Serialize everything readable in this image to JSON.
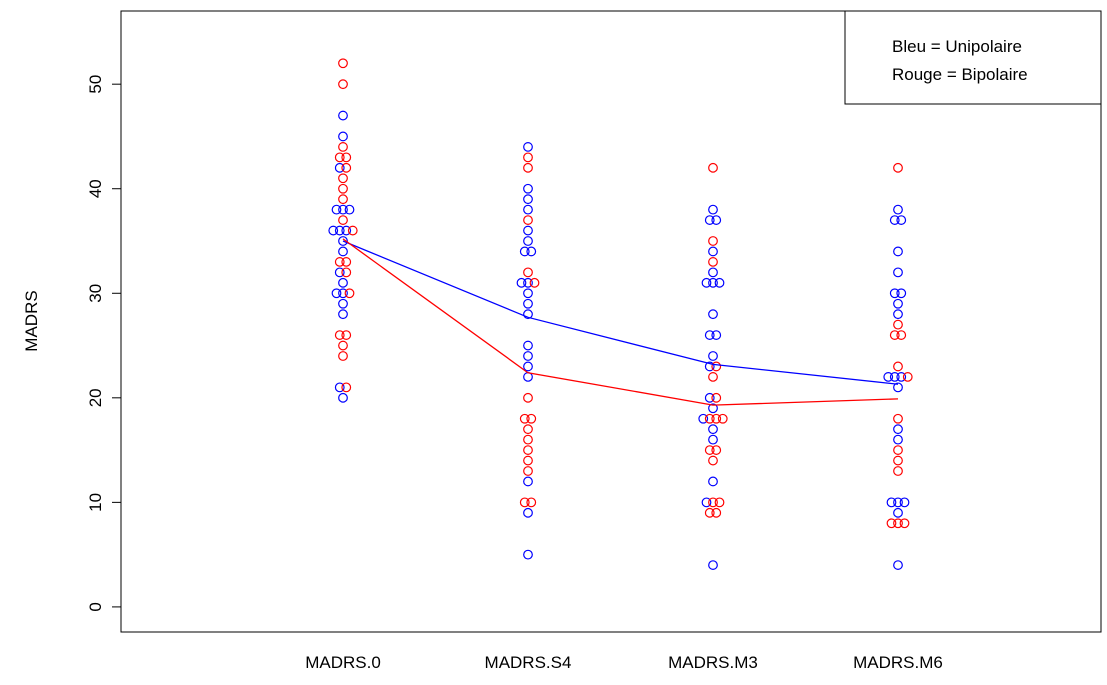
{
  "chart_data": {
    "type": "scatter",
    "categories": [
      "MADRS.0",
      "MADRS.S4",
      "MADRS.M3",
      "MADRS.M6"
    ],
    "ylabel": "MADRS",
    "ylim": [
      -2.4,
      57
    ],
    "yticks": [
      0,
      10,
      20,
      30,
      40,
      50
    ],
    "grid": false,
    "legend": {
      "position": "top-right",
      "entries": [
        "Bleu = Unipolaire",
        "Rouge = Bipolaire"
      ]
    },
    "series": [
      {
        "color": "#0000ff",
        "points": [
          {
            "x": "MADRS.0",
            "y": 47
          },
          {
            "x": "MADRS.0",
            "y": 45
          },
          {
            "x": "MADRS.0",
            "y": 42
          },
          {
            "x": "MADRS.0",
            "y": 38
          },
          {
            "x": "MADRS.0",
            "y": 38
          },
          {
            "x": "MADRS.0",
            "y": 38
          },
          {
            "x": "MADRS.0",
            "y": 36
          },
          {
            "x": "MADRS.0",
            "y": 36
          },
          {
            "x": "MADRS.0",
            "y": 36
          },
          {
            "x": "MADRS.0",
            "y": 35
          },
          {
            "x": "MADRS.0",
            "y": 34
          },
          {
            "x": "MADRS.0",
            "y": 32
          },
          {
            "x": "MADRS.0",
            "y": 31
          },
          {
            "x": "MADRS.0",
            "y": 30
          },
          {
            "x": "MADRS.0",
            "y": 30
          },
          {
            "x": "MADRS.0",
            "y": 29
          },
          {
            "x": "MADRS.0",
            "y": 28
          },
          {
            "x": "MADRS.0",
            "y": 21
          },
          {
            "x": "MADRS.0",
            "y": 20
          },
          {
            "x": "MADRS.S4",
            "y": 44
          },
          {
            "x": "MADRS.S4",
            "y": 40
          },
          {
            "x": "MADRS.S4",
            "y": 39
          },
          {
            "x": "MADRS.S4",
            "y": 38
          },
          {
            "x": "MADRS.S4",
            "y": 36
          },
          {
            "x": "MADRS.S4",
            "y": 35
          },
          {
            "x": "MADRS.S4",
            "y": 34
          },
          {
            "x": "MADRS.S4",
            "y": 34
          },
          {
            "x": "MADRS.S4",
            "y": 31
          },
          {
            "x": "MADRS.S4",
            "y": 31
          },
          {
            "x": "MADRS.S4",
            "y": 30
          },
          {
            "x": "MADRS.S4",
            "y": 29
          },
          {
            "x": "MADRS.S4",
            "y": 28
          },
          {
            "x": "MADRS.S4",
            "y": 25
          },
          {
            "x": "MADRS.S4",
            "y": 24
          },
          {
            "x": "MADRS.S4",
            "y": 23
          },
          {
            "x": "MADRS.S4",
            "y": 22
          },
          {
            "x": "MADRS.S4",
            "y": 12
          },
          {
            "x": "MADRS.S4",
            "y": 9
          },
          {
            "x": "MADRS.S4",
            "y": 5
          },
          {
            "x": "MADRS.M3",
            "y": 38
          },
          {
            "x": "MADRS.M3",
            "y": 37
          },
          {
            "x": "MADRS.M3",
            "y": 37
          },
          {
            "x": "MADRS.M3",
            "y": 34
          },
          {
            "x": "MADRS.M3",
            "y": 32
          },
          {
            "x": "MADRS.M3",
            "y": 31
          },
          {
            "x": "MADRS.M3",
            "y": 31
          },
          {
            "x": "MADRS.M3",
            "y": 31
          },
          {
            "x": "MADRS.M3",
            "y": 28
          },
          {
            "x": "MADRS.M3",
            "y": 26
          },
          {
            "x": "MADRS.M3",
            "y": 26
          },
          {
            "x": "MADRS.M3",
            "y": 24
          },
          {
            "x": "MADRS.M3",
            "y": 23
          },
          {
            "x": "MADRS.M3",
            "y": 20
          },
          {
            "x": "MADRS.M3",
            "y": 19
          },
          {
            "x": "MADRS.M3",
            "y": 18
          },
          {
            "x": "MADRS.M3",
            "y": 17
          },
          {
            "x": "MADRS.M3",
            "y": 16
          },
          {
            "x": "MADRS.M3",
            "y": 12
          },
          {
            "x": "MADRS.M3",
            "y": 10
          },
          {
            "x": "MADRS.M3",
            "y": 4
          },
          {
            "x": "MADRS.M6",
            "y": 38
          },
          {
            "x": "MADRS.M6",
            "y": 37
          },
          {
            "x": "MADRS.M6",
            "y": 37
          },
          {
            "x": "MADRS.M6",
            "y": 34
          },
          {
            "x": "MADRS.M6",
            "y": 32
          },
          {
            "x": "MADRS.M6",
            "y": 30
          },
          {
            "x": "MADRS.M6",
            "y": 30
          },
          {
            "x": "MADRS.M6",
            "y": 29
          },
          {
            "x": "MADRS.M6",
            "y": 28
          },
          {
            "x": "MADRS.M6",
            "y": 22
          },
          {
            "x": "MADRS.M6",
            "y": 22
          },
          {
            "x": "MADRS.M6",
            "y": 22
          },
          {
            "x": "MADRS.M6",
            "y": 21
          },
          {
            "x": "MADRS.M6",
            "y": 17
          },
          {
            "x": "MADRS.M6",
            "y": 16
          },
          {
            "x": "MADRS.M6",
            "y": 10
          },
          {
            "x": "MADRS.M6",
            "y": 10
          },
          {
            "x": "MADRS.M6",
            "y": 10
          },
          {
            "x": "MADRS.M6",
            "y": 9
          },
          {
            "x": "MADRS.M6",
            "y": 4
          }
        ],
        "mean_line": [
          35.0,
          27.7,
          23.2,
          21.3
        ]
      },
      {
        "color": "#ff0000",
        "points": [
          {
            "x": "MADRS.0",
            "y": 52
          },
          {
            "x": "MADRS.0",
            "y": 50
          },
          {
            "x": "MADRS.0",
            "y": 44
          },
          {
            "x": "MADRS.0",
            "y": 43
          },
          {
            "x": "MADRS.0",
            "y": 43
          },
          {
            "x": "MADRS.0",
            "y": 42
          },
          {
            "x": "MADRS.0",
            "y": 41
          },
          {
            "x": "MADRS.0",
            "y": 40
          },
          {
            "x": "MADRS.0",
            "y": 39
          },
          {
            "x": "MADRS.0",
            "y": 37
          },
          {
            "x": "MADRS.0",
            "y": 36
          },
          {
            "x": "MADRS.0",
            "y": 33
          },
          {
            "x": "MADRS.0",
            "y": 33
          },
          {
            "x": "MADRS.0",
            "y": 32
          },
          {
            "x": "MADRS.0",
            "y": 30
          },
          {
            "x": "MADRS.0",
            "y": 26
          },
          {
            "x": "MADRS.0",
            "y": 26
          },
          {
            "x": "MADRS.0",
            "y": 25
          },
          {
            "x": "MADRS.0",
            "y": 24
          },
          {
            "x": "MADRS.0",
            "y": 21
          },
          {
            "x": "MADRS.S4",
            "y": 43
          },
          {
            "x": "MADRS.S4",
            "y": 42
          },
          {
            "x": "MADRS.S4",
            "y": 37
          },
          {
            "x": "MADRS.S4",
            "y": 32
          },
          {
            "x": "MADRS.S4",
            "y": 31
          },
          {
            "x": "MADRS.S4",
            "y": 20
          },
          {
            "x": "MADRS.S4",
            "y": 18
          },
          {
            "x": "MADRS.S4",
            "y": 18
          },
          {
            "x": "MADRS.S4",
            "y": 17
          },
          {
            "x": "MADRS.S4",
            "y": 16
          },
          {
            "x": "MADRS.S4",
            "y": 15
          },
          {
            "x": "MADRS.S4",
            "y": 14
          },
          {
            "x": "MADRS.S4",
            "y": 13
          },
          {
            "x": "MADRS.S4",
            "y": 10
          },
          {
            "x": "MADRS.S4",
            "y": 10
          },
          {
            "x": "MADRS.M3",
            "y": 42
          },
          {
            "x": "MADRS.M3",
            "y": 35
          },
          {
            "x": "MADRS.M3",
            "y": 33
          },
          {
            "x": "MADRS.M3",
            "y": 23
          },
          {
            "x": "MADRS.M3",
            "y": 22
          },
          {
            "x": "MADRS.M3",
            "y": 20
          },
          {
            "x": "MADRS.M3",
            "y": 18
          },
          {
            "x": "MADRS.M3",
            "y": 18
          },
          {
            "x": "MADRS.M3",
            "y": 18
          },
          {
            "x": "MADRS.M3",
            "y": 15
          },
          {
            "x": "MADRS.M3",
            "y": 15
          },
          {
            "x": "MADRS.M3",
            "y": 14
          },
          {
            "x": "MADRS.M3",
            "y": 10
          },
          {
            "x": "MADRS.M3",
            "y": 10
          },
          {
            "x": "MADRS.M3",
            "y": 9
          },
          {
            "x": "MADRS.M3",
            "y": 9
          },
          {
            "x": "MADRS.M6",
            "y": 42
          },
          {
            "x": "MADRS.M6",
            "y": 27
          },
          {
            "x": "MADRS.M6",
            "y": 26
          },
          {
            "x": "MADRS.M6",
            "y": 26
          },
          {
            "x": "MADRS.M6",
            "y": 23
          },
          {
            "x": "MADRS.M6",
            "y": 22
          },
          {
            "x": "MADRS.M6",
            "y": 18
          },
          {
            "x": "MADRS.M6",
            "y": 15
          },
          {
            "x": "MADRS.M6",
            "y": 14
          },
          {
            "x": "MADRS.M6",
            "y": 13
          },
          {
            "x": "MADRS.M6",
            "y": 8
          },
          {
            "x": "MADRS.M6",
            "y": 8
          },
          {
            "x": "MADRS.M6",
            "y": 8
          }
        ],
        "mean_line": [
          35.2,
          22.4,
          19.3,
          19.9
        ]
      }
    ]
  }
}
